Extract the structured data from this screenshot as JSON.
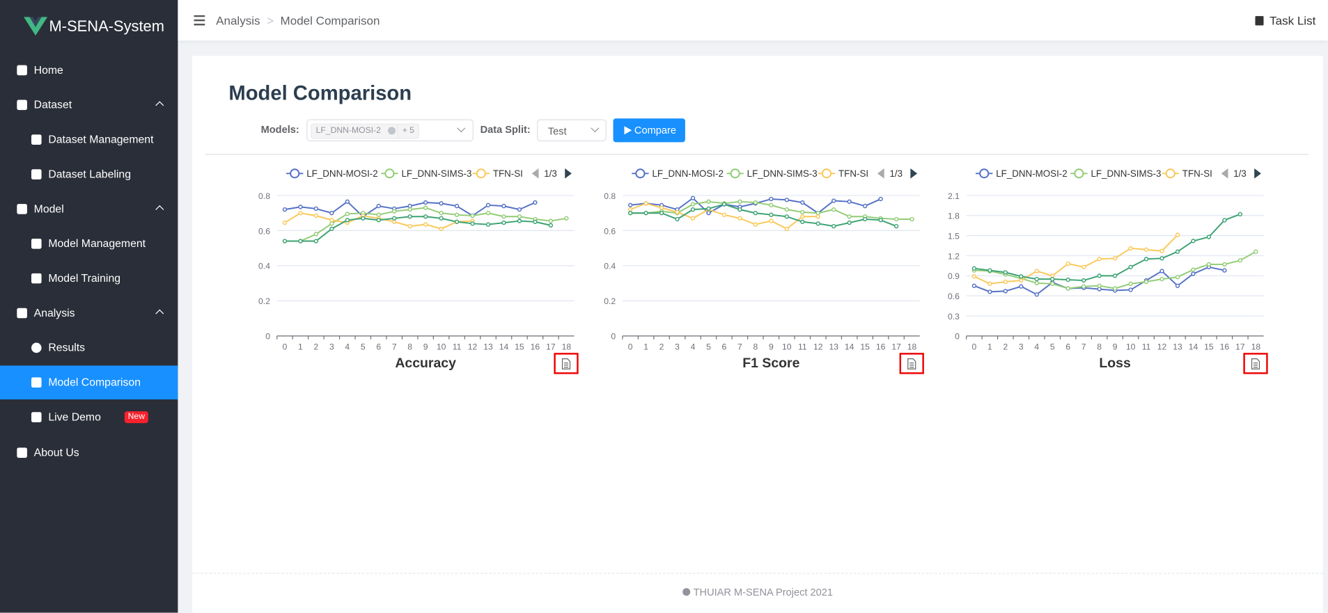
{
  "sidebar": {
    "brand": "M-SENA-System",
    "menu": [
      {
        "label": "Home"
      },
      {
        "label": "Dataset"
      },
      {
        "label": "Dataset Management"
      },
      {
        "label": "Dataset Labeling"
      },
      {
        "label": "Model"
      },
      {
        "label": "Model Management"
      },
      {
        "label": "Model Training"
      },
      {
        "label": "Analysis"
      },
      {
        "label": "Results"
      },
      {
        "label": "Model Comparison"
      },
      {
        "label": "Live Demo",
        "badge": "New"
      },
      {
        "label": "About Us"
      }
    ]
  },
  "header": {
    "breadcrumb": [
      "Analysis",
      "Model Comparison"
    ],
    "task_list": "Task List"
  },
  "page": {
    "title": "Model Comparison",
    "models_label": "Models:",
    "model_tag": "LF_DNN-MOSI-2",
    "more_tag": "+ 5",
    "split_label": "Data Split:",
    "split_value": "Test",
    "compare_button": "Compare"
  },
  "charts": [
    {
      "type": "line",
      "title": "Accuracy",
      "legend_page": "1/3",
      "categories": [
        "0",
        "1",
        "2",
        "3",
        "4",
        "5",
        "6",
        "7",
        "8",
        "9",
        "10",
        "11",
        "12",
        "13",
        "14",
        "15",
        "16",
        "17",
        "18"
      ],
      "ylim": [
        0,
        0.8
      ],
      "yticks": [
        0,
        0.2,
        0.4,
        0.6,
        0.8
      ],
      "series": [
        {
          "name": "LF_DNN-MOSI-2",
          "color": "#5470c6",
          "values": [
            0.72,
            0.735,
            0.725,
            0.7,
            0.765,
            0.68,
            0.74,
            0.725,
            0.74,
            0.76,
            0.755,
            0.74,
            0.685,
            0.745,
            0.74,
            0.72,
            0.76,
            null,
            null
          ]
        },
        {
          "name": "LF_DNN-SIMS-3",
          "color": "#91cc75",
          "values": [
            0.54,
            0.54,
            0.58,
            0.64,
            0.695,
            0.7,
            0.69,
            0.71,
            0.72,
            0.73,
            0.7,
            0.69,
            0.685,
            0.7,
            0.68,
            0.68,
            0.665,
            0.655,
            0.67
          ]
        },
        {
          "name": "TFN-SI",
          "color": "#fac858",
          "values": [
            0.645,
            0.7,
            0.685,
            0.66,
            0.645,
            0.685,
            0.67,
            0.65,
            0.625,
            0.635,
            0.61,
            0.65,
            0.655,
            null,
            null,
            null,
            null,
            null,
            null
          ]
        },
        {
          "color": "#3ba272",
          "values": [
            0.54,
            0.54,
            0.54,
            0.61,
            0.66,
            0.67,
            0.66,
            0.67,
            0.68,
            0.68,
            0.67,
            0.65,
            0.64,
            0.635,
            0.645,
            0.655,
            0.65,
            0.63,
            null
          ]
        }
      ]
    },
    {
      "type": "line",
      "title": "F1 Score",
      "legend_page": "1/3",
      "categories": [
        "0",
        "1",
        "2",
        "3",
        "4",
        "5",
        "6",
        "7",
        "8",
        "9",
        "10",
        "11",
        "12",
        "13",
        "14",
        "15",
        "16",
        "17",
        "18"
      ],
      "ylim": [
        0,
        0.8
      ],
      "yticks": [
        0,
        0.2,
        0.4,
        0.6,
        0.8
      ],
      "series": [
        {
          "name": "LF_DNN-MOSI-2",
          "color": "#5470c6",
          "values": [
            0.745,
            0.755,
            0.745,
            0.72,
            0.785,
            0.7,
            0.75,
            0.735,
            0.755,
            0.78,
            0.775,
            0.76,
            0.7,
            0.77,
            0.765,
            0.74,
            0.78,
            null,
            null
          ]
        },
        {
          "name": "LF_DNN-SIMS-3",
          "color": "#91cc75",
          "values": [
            0.7,
            0.7,
            0.71,
            0.7,
            0.75,
            0.765,
            0.755,
            0.765,
            0.76,
            0.745,
            0.72,
            0.705,
            0.7,
            0.72,
            0.68,
            0.68,
            0.67,
            0.665,
            0.665
          ]
        },
        {
          "name": "TFN-SI",
          "color": "#fac858",
          "values": [
            0.72,
            0.755,
            0.73,
            0.705,
            0.67,
            0.72,
            0.69,
            0.67,
            0.635,
            0.655,
            0.61,
            0.68,
            0.68,
            null,
            null,
            null,
            null,
            null,
            null
          ]
        },
        {
          "color": "#3ba272",
          "values": [
            0.7,
            0.7,
            0.7,
            0.665,
            0.72,
            0.725,
            0.75,
            0.72,
            0.7,
            0.69,
            0.68,
            0.65,
            0.64,
            0.625,
            0.645,
            0.665,
            0.66,
            0.625,
            null
          ]
        }
      ]
    },
    {
      "type": "line",
      "title": "Loss",
      "legend_page": "1/3",
      "categories": [
        "0",
        "1",
        "2",
        "3",
        "4",
        "5",
        "6",
        "7",
        "8",
        "9",
        "10",
        "11",
        "12",
        "13",
        "14",
        "15",
        "16",
        "17",
        "18"
      ],
      "ylim": [
        0,
        2.1
      ],
      "yticks": [
        0,
        0.3,
        0.6,
        0.9,
        1.2,
        1.5,
        1.8,
        2.1
      ],
      "series": [
        {
          "name": "LF_DNN-MOSI-2",
          "color": "#5470c6",
          "values": [
            0.75,
            0.66,
            0.67,
            0.74,
            0.62,
            0.8,
            0.71,
            0.72,
            0.7,
            0.68,
            0.69,
            0.83,
            0.97,
            0.75,
            0.93,
            1.03,
            0.98,
            null,
            null
          ]
        },
        {
          "name": "LF_DNN-SIMS-3",
          "color": "#91cc75",
          "values": [
            0.98,
            0.97,
            0.92,
            0.86,
            0.79,
            0.78,
            0.71,
            0.74,
            0.75,
            0.71,
            0.78,
            0.81,
            0.85,
            0.88,
            0.99,
            1.07,
            1.07,
            1.13,
            1.26
          ]
        },
        {
          "name": "TFN-SI",
          "color": "#fac858",
          "values": [
            0.89,
            0.78,
            0.81,
            0.83,
            0.97,
            0.9,
            1.08,
            1.03,
            1.15,
            1.16,
            1.31,
            1.29,
            1.27,
            1.51,
            null,
            null,
            null,
            null,
            null
          ]
        },
        {
          "color": "#3ba272",
          "values": [
            1.01,
            0.98,
            0.95,
            0.89,
            0.85,
            0.85,
            0.84,
            0.83,
            0.9,
            0.9,
            1.03,
            1.15,
            1.16,
            1.26,
            1.42,
            1.48,
            1.73,
            1.82,
            null
          ]
        }
      ]
    }
  ],
  "footer": "THUIAR M-SENA Project 2021"
}
